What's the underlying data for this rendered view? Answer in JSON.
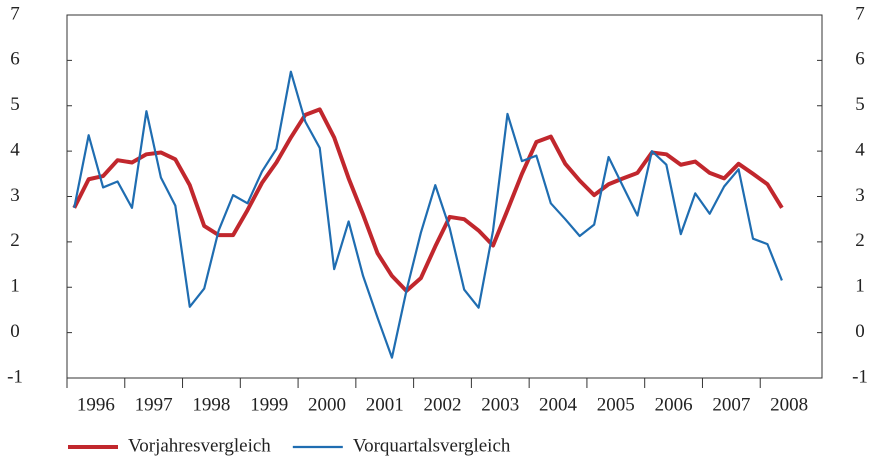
{
  "chart_data": {
    "type": "line",
    "x": [
      1996.125,
      1996.375,
      1996.625,
      1996.875,
      1997.125,
      1997.375,
      1997.625,
      1997.875,
      1998.125,
      1998.375,
      1998.625,
      1998.875,
      1999.125,
      1999.375,
      1999.625,
      1999.875,
      2000.125,
      2000.375,
      2000.625,
      2000.875,
      2001.125,
      2001.375,
      2001.625,
      2001.875,
      2002.125,
      2002.375,
      2002.625,
      2002.875,
      2003.125,
      2003.375,
      2003.625,
      2003.875,
      2004.125,
      2004.375,
      2004.625,
      2004.875,
      2005.125,
      2005.375,
      2005.625,
      2005.875,
      2006.125,
      2006.375,
      2006.625,
      2006.875,
      2007.125,
      2007.375,
      2007.625,
      2007.875,
      2008.125,
      2008.375
    ],
    "xlim": [
      1996,
      2009
    ],
    "xticks": [
      {
        "value": 1996,
        "label": "1996"
      },
      {
        "value": 1997,
        "label": "1997"
      },
      {
        "value": 1998,
        "label": "1998"
      },
      {
        "value": 1999,
        "label": "1999"
      },
      {
        "value": 2000,
        "label": "2000"
      },
      {
        "value": 2001,
        "label": "2001"
      },
      {
        "value": 2002,
        "label": "2002"
      },
      {
        "value": 2003,
        "label": "2003"
      },
      {
        "value": 2004,
        "label": "2004"
      },
      {
        "value": 2005,
        "label": "2005"
      },
      {
        "value": 2006,
        "label": "2006"
      },
      {
        "value": 2007,
        "label": "2007"
      },
      {
        "value": 2008,
        "label": "2008"
      }
    ],
    "ylim": [
      -1,
      7
    ],
    "yticks": [
      -1,
      0,
      1,
      2,
      3,
      4,
      5,
      6,
      7
    ],
    "y2lim": [
      -1,
      7
    ],
    "y2ticks": [
      -1,
      0,
      1,
      2,
      3,
      4,
      5,
      6,
      7
    ],
    "legend": "bottom-left",
    "series": [
      {
        "name": "Vorjahresvergleich",
        "color": "#c1272d",
        "width": 4,
        "values": [
          2.75,
          3.38,
          3.45,
          3.8,
          3.75,
          3.93,
          3.97,
          3.82,
          3.25,
          2.35,
          2.15,
          2.15,
          2.7,
          3.3,
          3.75,
          4.3,
          4.8,
          4.92,
          4.3,
          3.4,
          2.6,
          1.75,
          1.25,
          0.92,
          1.2,
          1.9,
          2.55,
          2.5,
          2.25,
          1.92,
          2.7,
          3.5,
          4.2,
          4.32,
          3.72,
          3.35,
          3.03,
          3.27,
          3.4,
          3.52,
          3.97,
          3.93,
          3.7,
          3.77,
          3.52,
          3.4,
          3.72,
          3.5,
          3.27,
          2.75
        ]
      },
      {
        "name": "Vorquartalsvergleich",
        "color": "#1f6db1",
        "width": 2.2,
        "values": [
          2.75,
          4.35,
          3.2,
          3.33,
          2.75,
          4.88,
          3.42,
          2.8,
          0.57,
          0.97,
          2.25,
          3.03,
          2.85,
          3.55,
          4.05,
          5.75,
          4.65,
          4.07,
          1.4,
          2.45,
          1.25,
          0.33,
          -0.55,
          0.92,
          2.2,
          3.25,
          2.3,
          0.95,
          0.55,
          2.25,
          4.82,
          3.78,
          3.9,
          2.85,
          2.5,
          2.13,
          2.38,
          3.87,
          3.22,
          2.58,
          4.0,
          3.7,
          2.17,
          3.07,
          2.62,
          3.22,
          3.6,
          2.07,
          1.95,
          1.15
        ]
      }
    ]
  }
}
